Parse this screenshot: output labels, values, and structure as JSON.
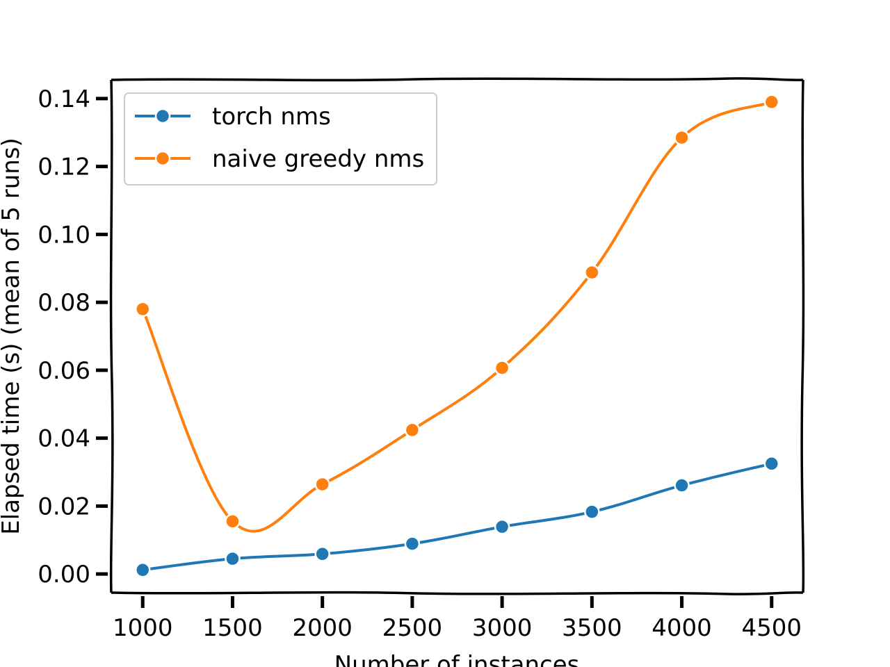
{
  "chart_data": {
    "type": "line",
    "title": "",
    "xlabel": "Number of instances",
    "ylabel": "Elapsed time (s) (mean of 5 runs)",
    "x": [
      1000,
      1500,
      2000,
      2500,
      3000,
      3500,
      4000,
      4500
    ],
    "x_ticks": [
      "1000",
      "1500",
      "2000",
      "2500",
      "3000",
      "3500",
      "4000",
      "4500"
    ],
    "y_ticks": [
      "0.00",
      "0.02",
      "0.04",
      "0.06",
      "0.08",
      "0.10",
      "0.12",
      "0.14"
    ],
    "y_tick_values": [
      0.0,
      0.02,
      0.04,
      0.06,
      0.08,
      0.1,
      0.12,
      0.14
    ],
    "xlim": [
      825,
      4675
    ],
    "ylim": [
      -0.0055,
      0.1455
    ],
    "grid": false,
    "legend_position": "top-left",
    "series": [
      {
        "name": "torch nms",
        "color": "#1f77b4",
        "marker": "circle",
        "values": [
          0.0012,
          0.0045,
          0.0059,
          0.0089,
          0.0139,
          0.0183,
          0.0261,
          0.0325
        ]
      },
      {
        "name": "naive greedy nms",
        "color": "#ff7f0e",
        "marker": "circle",
        "values": [
          0.078,
          0.0155,
          0.0264,
          0.0424,
          0.0607,
          0.0888,
          0.1285,
          0.139
        ]
      }
    ]
  }
}
